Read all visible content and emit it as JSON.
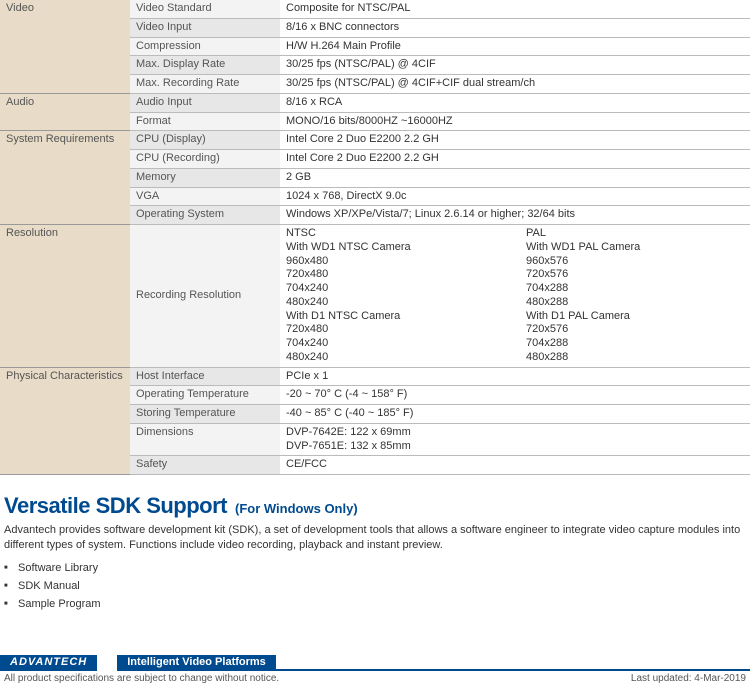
{
  "specs": {
    "video": {
      "category": "Video",
      "rows": [
        {
          "param": "Video Standard",
          "val": "Composite for NTSC/PAL",
          "alt": true
        },
        {
          "param": "Video Input",
          "val": "8/16 x BNC connectors",
          "alt": false
        },
        {
          "param": "Compression",
          "val": "H/W H.264 Main Profile",
          "alt": true
        },
        {
          "param": "Max. Display Rate",
          "val": "30/25 fps (NTSC/PAL) @ 4CIF",
          "alt": false
        },
        {
          "param": "Max. Recording Rate",
          "val": "30/25 fps (NTSC/PAL) @ 4CIF+CIF dual stream/ch",
          "alt": true
        }
      ]
    },
    "audio": {
      "category": "Audio",
      "rows": [
        {
          "param": "Audio Input",
          "val": "8/16 x RCA",
          "alt": false
        },
        {
          "param": "Format",
          "val": "MONO/16 bits/8000HZ ~16000HZ",
          "alt": true
        }
      ]
    },
    "sysreq": {
      "category": "System Requirements",
      "rows": [
        {
          "param": "CPU (Display)",
          "val": "Intel Core 2 Duo E2200 2.2 GH",
          "alt": false
        },
        {
          "param": "CPU (Recording)",
          "val": "Intel Core 2 Duo E2200 2.2 GH",
          "alt": true
        },
        {
          "param": "Memory",
          "val": "2 GB",
          "alt": false
        },
        {
          "param": "VGA",
          "val": "1024 x 768, DirectX 9.0c",
          "alt": true
        },
        {
          "param": "Operating System",
          "val": "Windows XP/XPe/Vista/7; Linux 2.6.14 or higher; 32/64 bits",
          "alt": false
        }
      ]
    },
    "resolution": {
      "category": "Resolution",
      "param": "Recording Resolution",
      "col1": "NTSC\nWith WD1 NTSC Camera\n960x480\n720x480\n704x240\n480x240\nWith D1 NTSC Camera\n720x480\n704x240\n480x240",
      "col2": "PAL\nWith WD1 PAL Camera\n960x576\n720x576\n704x288\n480x288\nWith D1 PAL Camera\n720x576\n704x288\n480x288"
    },
    "physical": {
      "category": "Physical Characteristics",
      "rows": [
        {
          "param": "Host Interface",
          "val": "PCIe x 1",
          "alt": false
        },
        {
          "param": "Operating Temperature",
          "val": "-20 ~ 70° C (-4 ~ 158° F)",
          "alt": true
        },
        {
          "param": "Storing Temperature",
          "val": "-40 ~ 85° C (-40 ~ 185° F)",
          "alt": false
        },
        {
          "param": "Dimensions",
          "val": "DVP-7642E: 122 x 69mm\nDVP-7651E: 132 x 85mm",
          "alt": true
        },
        {
          "param": "Safety",
          "val": "CE/FCC",
          "alt": false
        }
      ]
    }
  },
  "sdk": {
    "heading": "Versatile SDK Support",
    "subheading": "(For Windows Only)",
    "description": "Advantech provides software development kit (SDK), a set of development tools that allows a software engineer to integrate video capture modules into different types of system. Functions include video recording, playback and instant preview.",
    "features": [
      "Software Library",
      "SDK Manual",
      "Sample Program"
    ]
  },
  "footer": {
    "logo": "ADVANTECH",
    "tagline": "Intelligent Video Platforms",
    "disclaimer": "All product specifications are subject to change without notice.",
    "updated": "Last updated: 4-Mar-2019"
  }
}
